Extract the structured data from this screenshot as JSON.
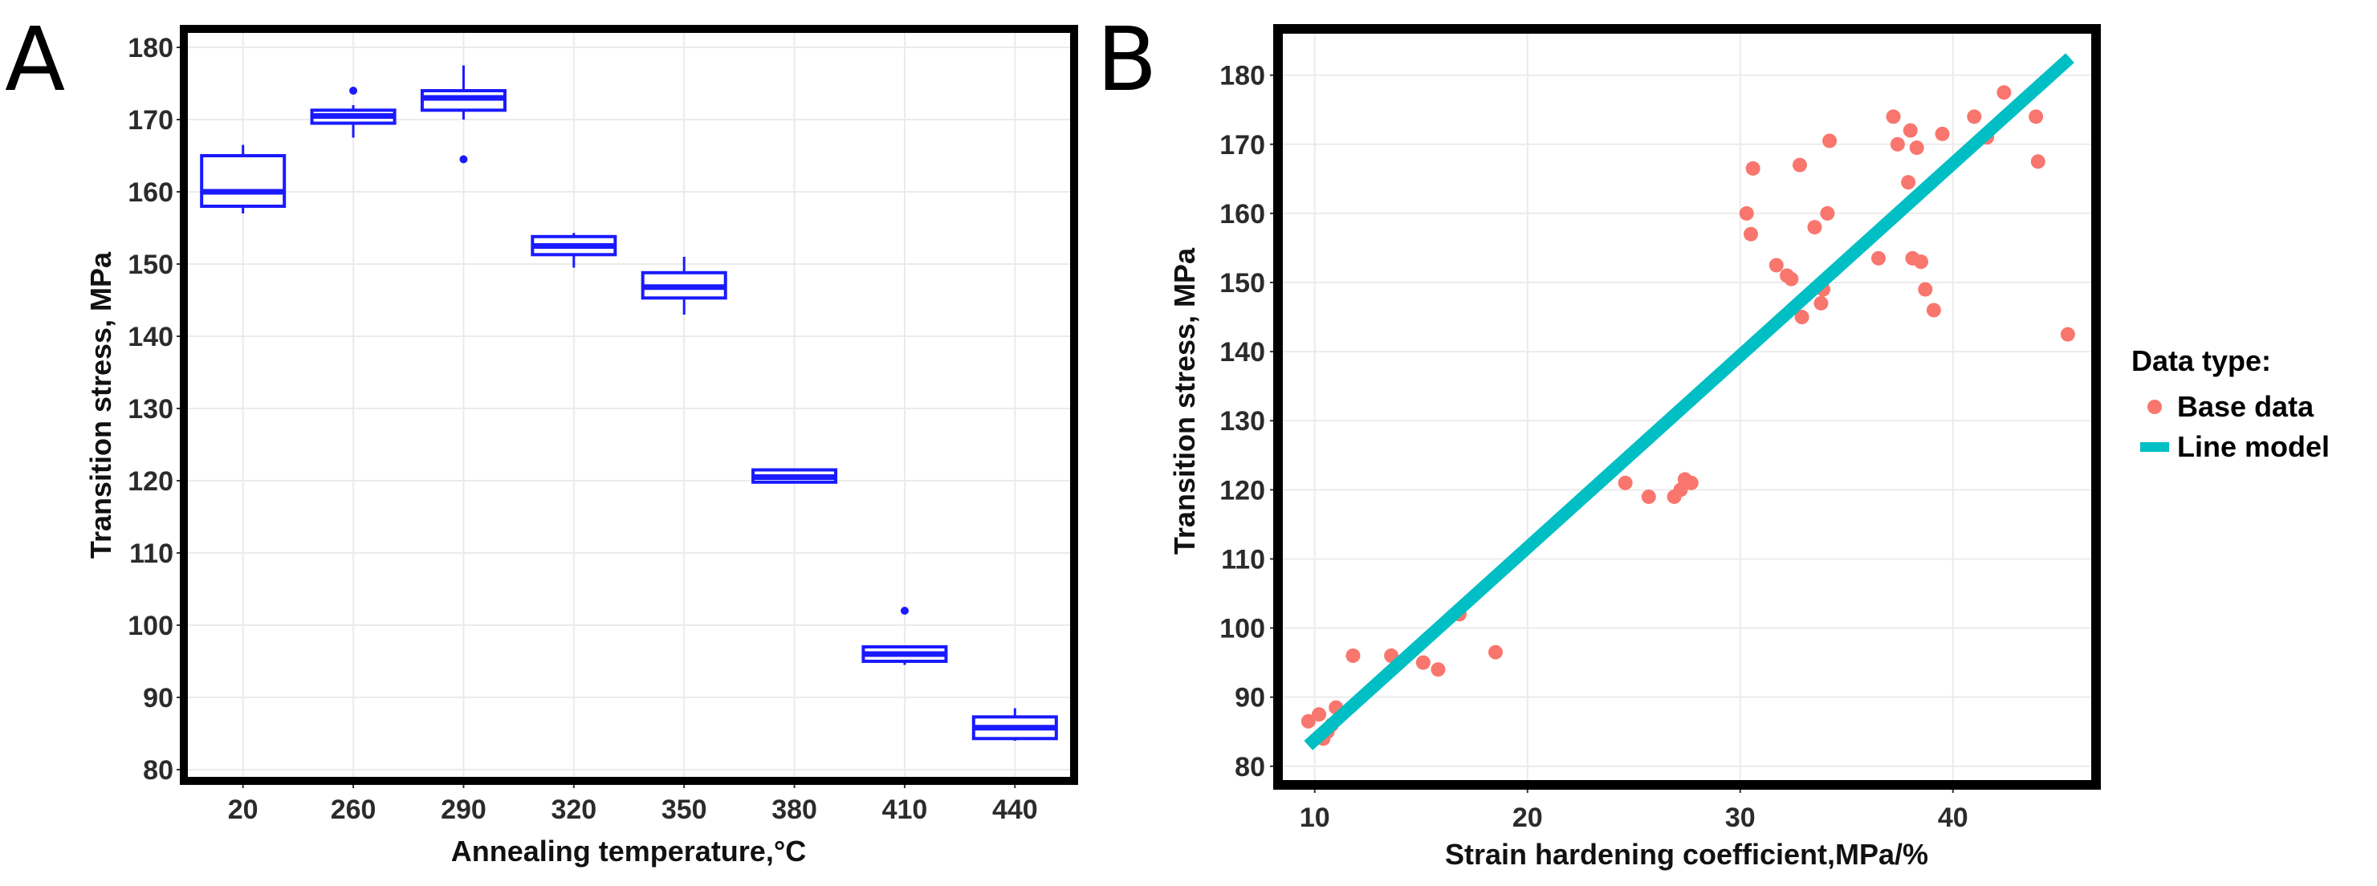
{
  "colors": {
    "box": "#1a1aff",
    "point": "#f8766d",
    "line": "#00bfc4",
    "grid": "#ebebeb",
    "frame": "#000000"
  },
  "chart_data": [
    {
      "panel_label": "A",
      "type": "box",
      "xlabel": "Annealing temperature,°C",
      "ylabel": "Transition stress, MPa",
      "ylim": [
        79,
        182
      ],
      "yticks": [
        80,
        90,
        100,
        110,
        120,
        130,
        140,
        150,
        160,
        170,
        180
      ],
      "categories": [
        "20",
        "260",
        "290",
        "320",
        "350",
        "380",
        "410",
        "440"
      ],
      "boxes": [
        {
          "q1": 158,
          "median": 160,
          "q3": 165,
          "whisker_low": 157,
          "whisker_high": 166.5,
          "outliers": []
        },
        {
          "q1": 169.5,
          "median": 170.5,
          "q3": 171.3,
          "whisker_low": 167.5,
          "whisker_high": 172,
          "outliers": [
            174
          ]
        },
        {
          "q1": 171.3,
          "median": 173,
          "q3": 174,
          "whisker_low": 170,
          "whisker_high": 177.5,
          "outliers": [
            164.5
          ]
        },
        {
          "q1": 151.3,
          "median": 152.5,
          "q3": 153.8,
          "whisker_low": 149.5,
          "whisker_high": 154.3,
          "outliers": []
        },
        {
          "q1": 145.3,
          "median": 146.8,
          "q3": 148.8,
          "whisker_low": 143,
          "whisker_high": 151,
          "outliers": []
        },
        {
          "q1": 119.8,
          "median": 120.5,
          "q3": 121.5,
          "whisker_low": 119.8,
          "whisker_high": 121.5,
          "outliers": []
        },
        {
          "q1": 95,
          "median": 96,
          "q3": 97,
          "whisker_low": 94.5,
          "whisker_high": 97,
          "outliers": [
            102
          ]
        },
        {
          "q1": 84.3,
          "median": 85.8,
          "q3": 87.3,
          "whisker_low": 84,
          "whisker_high": 88.5,
          "outliers": []
        }
      ]
    },
    {
      "panel_label": "B",
      "type": "scatter",
      "xlabel": "Strain hardening coefficient,MPa/%",
      "ylabel": "Transition stress, MPa",
      "xlim": [
        8.5,
        46.5
      ],
      "ylim": [
        78,
        186
      ],
      "xticks": [
        10,
        20,
        30,
        40
      ],
      "yticks": [
        80,
        90,
        100,
        110,
        120,
        130,
        140,
        150,
        160,
        170,
        180
      ],
      "legend": {
        "title": "Data type:",
        "position": "right",
        "entries": [
          "Base data",
          "Line model"
        ]
      },
      "series": [
        {
          "name": "Base data",
          "kind": "points",
          "x": [
            9.7,
            10.2,
            10.4,
            10.6,
            10.8,
            11.0,
            11.8,
            13.6,
            15.1,
            15.8,
            16.8,
            18.5,
            24.6,
            25.7,
            26.9,
            27.2,
            27.4,
            27.7,
            30.3,
            30.5,
            30.6,
            31.7,
            32.2,
            32.4,
            32.8,
            32.9,
            33.5,
            33.8,
            33.9,
            34.1,
            34.2,
            36.5,
            37.2,
            37.4,
            37.9,
            38.0,
            38.1,
            38.3,
            38.5,
            38.7,
            39.1,
            39.5,
            41.0,
            41.6,
            42.4,
            43.9,
            44.0,
            45.4
          ],
          "y": [
            86.5,
            87.5,
            84,
            85,
            86,
            88.5,
            96,
            96,
            95,
            94,
            102,
            96.5,
            121,
            119,
            119,
            120,
            121.5,
            121,
            160,
            157,
            166.5,
            152.5,
            151,
            150.5,
            167,
            145,
            158,
            147,
            149,
            160,
            170.5,
            153.5,
            174,
            170,
            164.5,
            172,
            153.5,
            169.5,
            153,
            149,
            146,
            171.5,
            174,
            171,
            177.5,
            174,
            167.5,
            142.5
          ]
        },
        {
          "name": "Line model",
          "kind": "line",
          "x": [
            9.7,
            45.5
          ],
          "y": [
            83,
            182.5
          ]
        }
      ]
    }
  ]
}
